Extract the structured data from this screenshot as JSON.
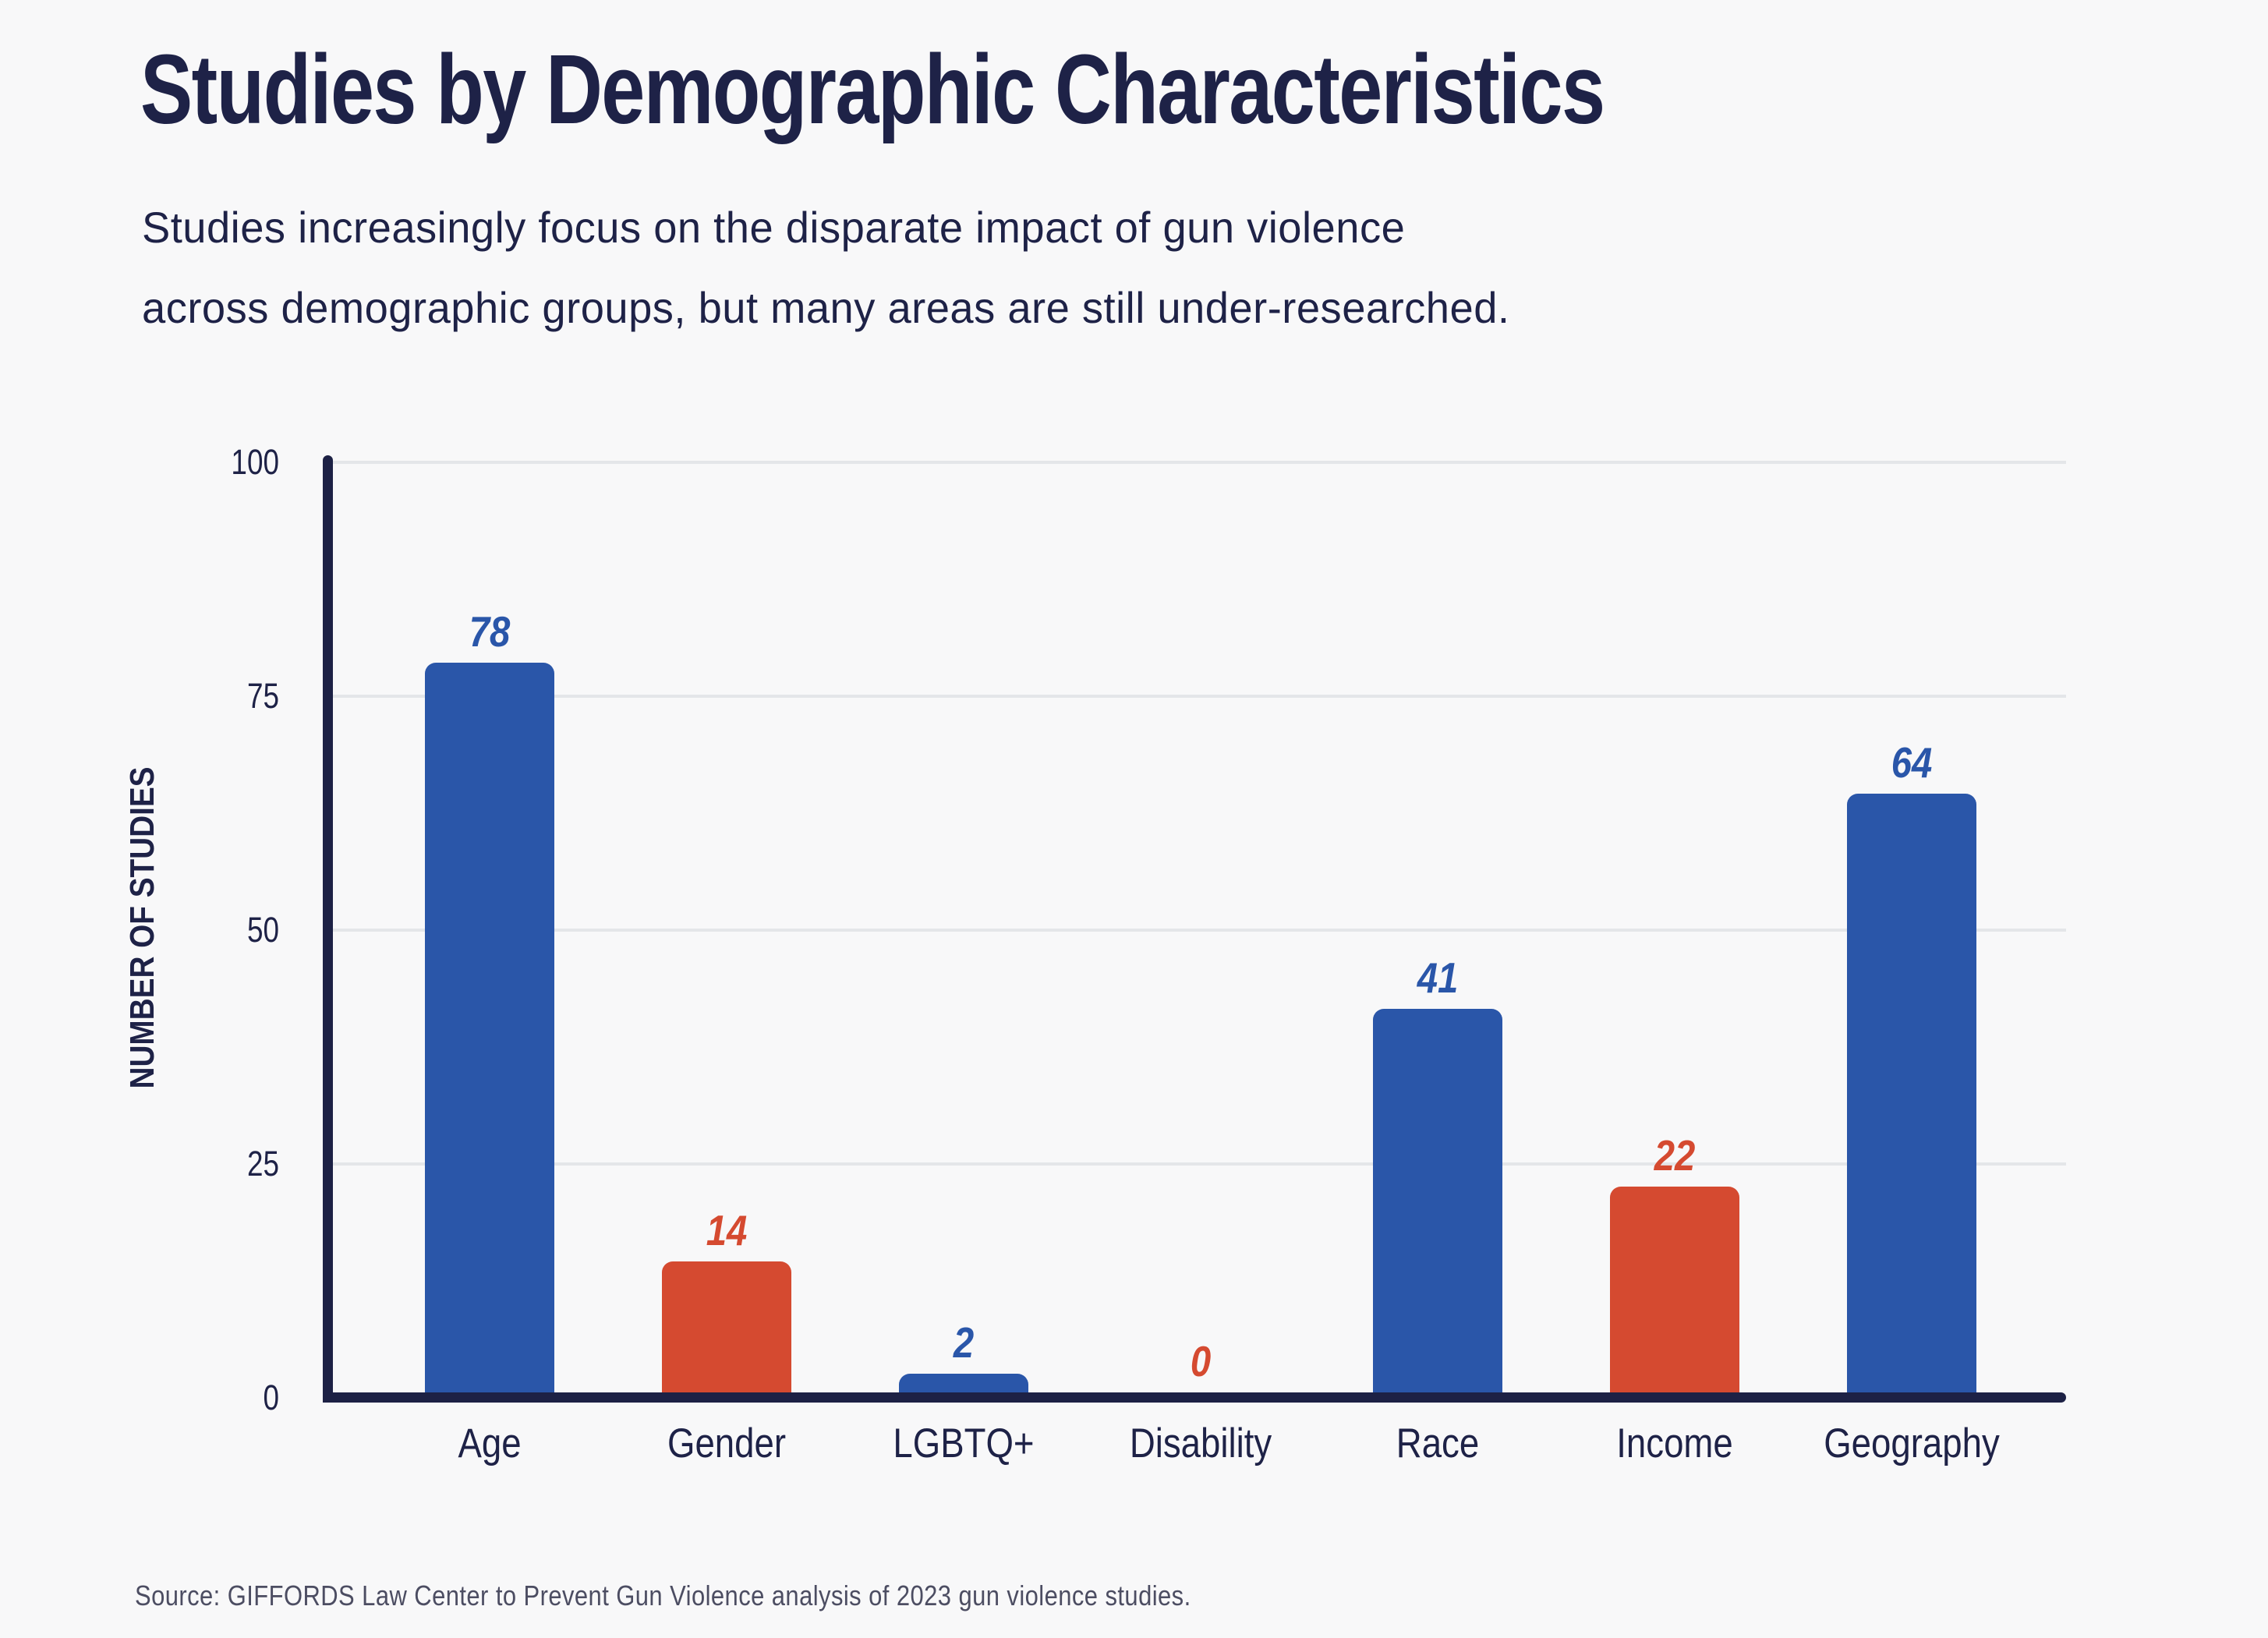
{
  "header": {
    "title": "Studies by Demographic Characteristics",
    "subtitle_line1": "Studies increasingly focus on the disparate impact of gun violence",
    "subtitle_line2": "across demographic groups, but many areas are still under-researched."
  },
  "chart_data": {
    "type": "bar",
    "title": "Studies by Demographic Characteristics",
    "xlabel": "",
    "ylabel": "NUMBER OF STUDIES",
    "ylim": [
      0,
      100
    ],
    "yticks": [
      0,
      25,
      50,
      75,
      100
    ],
    "grid": true,
    "legend": "none",
    "categories": [
      "Age",
      "Gender",
      "LGBTQ+",
      "Disability",
      "Race",
      "Income",
      "Geography"
    ],
    "values": [
      78,
      14,
      2,
      0,
      41,
      22,
      64
    ],
    "bar_color_keys": [
      "blue",
      "red",
      "blue",
      "red",
      "blue",
      "red",
      "blue"
    ],
    "colors": {
      "blue": "#2a56a9",
      "red": "#d54a30",
      "axis": "#1d2145",
      "grid": "#e4e6e9",
      "text": "#1e2247",
      "background": "#f8f8f9"
    }
  },
  "footer": {
    "source": "Source: GIFFORDS Law Center to Prevent Gun Violence analysis of 2023 gun violence studies."
  }
}
